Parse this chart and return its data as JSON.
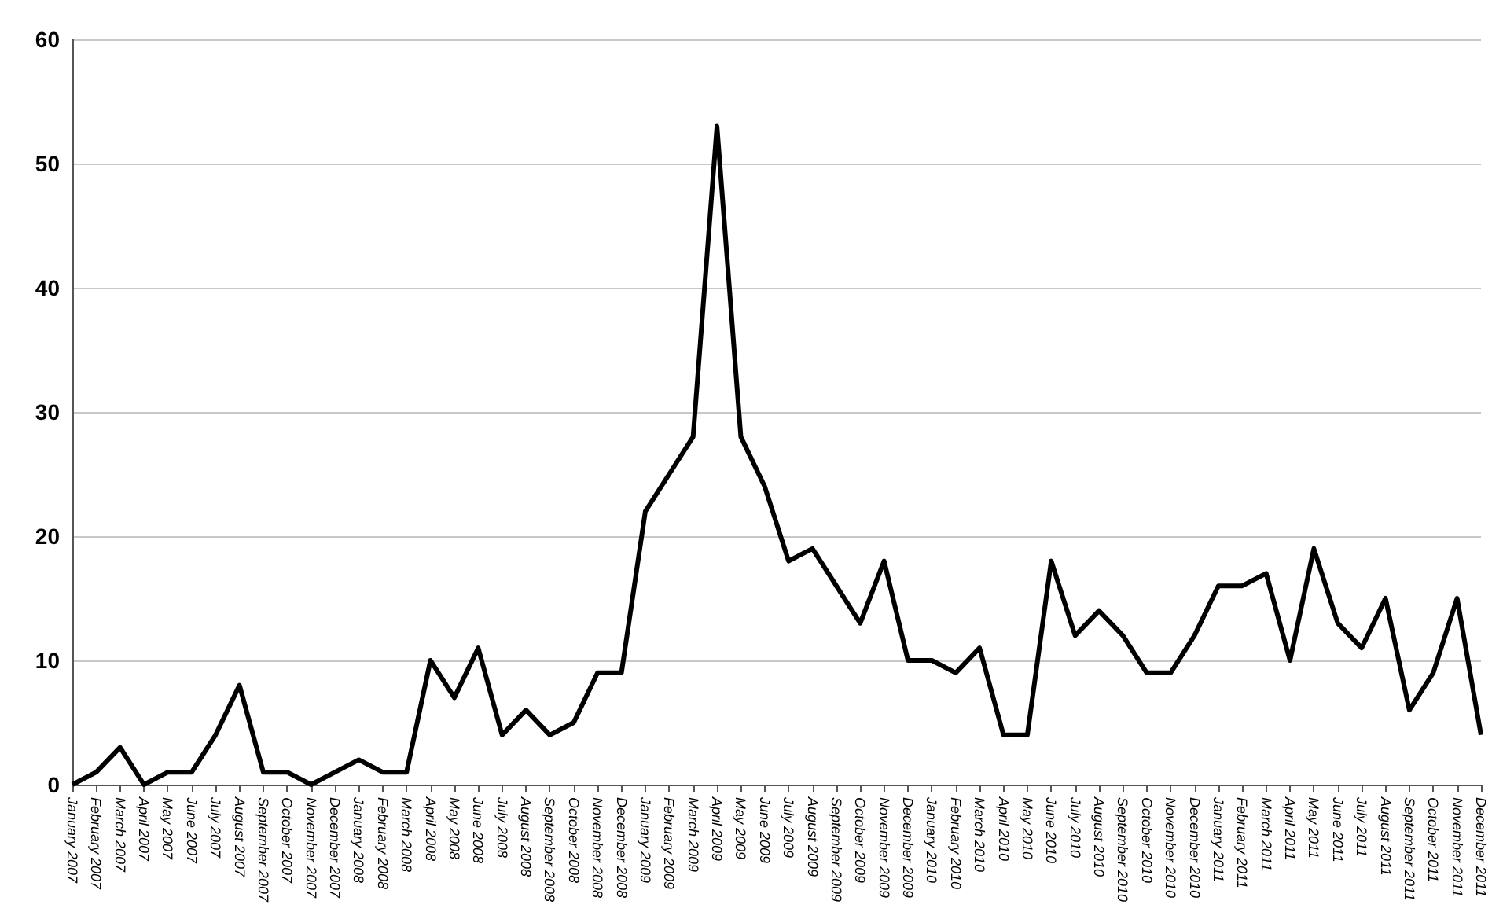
{
  "chart_data": {
    "type": "line",
    "categories": [
      "January 2007",
      "February 2007",
      "March 2007",
      "April 2007",
      "May 2007",
      "June 2007",
      "July 2007",
      "August 2007",
      "September 2007",
      "October 2007",
      "November 2007",
      "December 2007",
      "January 2008",
      "February 2008",
      "March 2008",
      "April 2008",
      "May 2008",
      "June 2008",
      "July 2008",
      "August 2008",
      "September 2008",
      "October 2008",
      "November 2008",
      "December 2008",
      "January 2009",
      "February 2009",
      "March 2009",
      "April 2009",
      "May 2009",
      "June 2009",
      "July 2009",
      "August 2009",
      "September 2009",
      "October 2009",
      "November 2009",
      "December 2009",
      "January 2010",
      "February 2010",
      "March 2010",
      "April 2010",
      "May 2010",
      "June 2010",
      "July 2010",
      "August 2010",
      "September 2010",
      "October 2010",
      "November 2010",
      "December 2010",
      "January 2011",
      "February 2011",
      "March 2011",
      "April 2011",
      "May 2011",
      "June 2011",
      "July 2011",
      "August 2011",
      "September 2011",
      "October 2011",
      "November 2011",
      "December 2011"
    ],
    "series": [
      {
        "color": "#000000",
        "values": [
          0,
          1,
          3,
          0,
          1,
          1,
          4,
          8,
          1,
          1,
          0,
          1,
          2,
          1,
          1,
          10,
          7,
          11,
          4,
          6,
          4,
          5,
          9,
          9,
          22,
          25,
          28,
          53,
          28,
          24,
          18,
          19,
          16,
          13,
          18,
          10,
          10,
          9,
          11,
          4,
          4,
          18,
          12,
          14,
          12,
          9,
          9,
          12,
          16,
          16,
          17,
          10,
          19,
          13,
          11,
          15,
          6,
          9,
          15,
          4
        ]
      }
    ],
    "ylim": [
      0,
      60
    ],
    "yticks": [
      0,
      10,
      20,
      30,
      40,
      50,
      60
    ],
    "grid": "y",
    "marker": "none",
    "line_style": "solid"
  }
}
